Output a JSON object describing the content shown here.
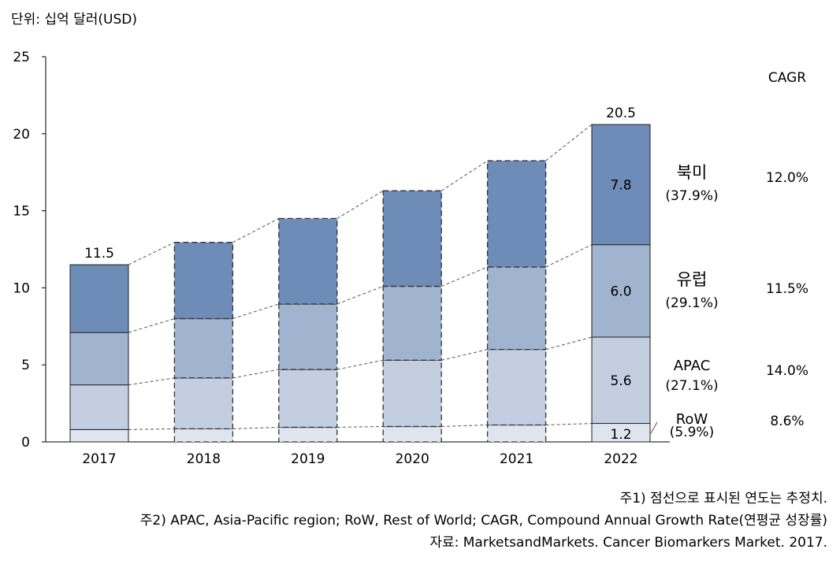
{
  "unit_label": "단위: 십억 달러(USD)",
  "chart_data": {
    "type": "bar",
    "stacked": true,
    "title": "",
    "ylabel": "단위: 십억 달러(USD)",
    "xlabel": "",
    "ylim": [
      0,
      25
    ],
    "yticks": [
      0,
      5,
      10,
      15,
      20,
      25
    ],
    "categories": [
      "2017",
      "2018",
      "2019",
      "2020",
      "2021",
      "2022"
    ],
    "estimated": [
      false,
      true,
      true,
      true,
      true,
      false
    ],
    "series": [
      {
        "name": "RoW",
        "share": "(5.9%)",
        "cagr": "8.6%",
        "color": "#dfe5ef",
        "values": [
          0.8,
          0.85,
          0.95,
          1.0,
          1.1,
          1.2
        ]
      },
      {
        "name": "APAC",
        "share": "(27.1%)",
        "cagr": "14.0%",
        "color": "#c3cfe1",
        "values": [
          2.9,
          3.3,
          3.75,
          4.3,
          4.9,
          5.6
        ]
      },
      {
        "name": "유럽",
        "share": "(29.1%)",
        "cagr": "11.5%",
        "color": "#a0b3cf",
        "values": [
          3.4,
          3.85,
          4.25,
          4.8,
          5.35,
          6.0
        ]
      },
      {
        "name": "북미",
        "share": "(37.9%)",
        "cagr": "12.0%",
        "color": "#6e8cb8",
        "values": [
          4.4,
          4.95,
          5.55,
          6.2,
          6.9,
          7.8
        ]
      }
    ],
    "totals": [
      {
        "year": "2017",
        "value": "11.5"
      },
      {
        "year": "2022",
        "value": "20.5"
      }
    ],
    "segment_labels_2022": [
      "1.2",
      "5.6",
      "6.0",
      "7.8"
    ],
    "cagr_header": "CAGR"
  },
  "notes": [
    "주1) 점선으로 표시된 연도는 추정치.",
    "주2) APAC, Asia-Pacific region; RoW, Rest of World; CAGR, Compound Annual Growth Rate(연평균 성장률)",
    "자료: MarketsandMarkets. Cancer Biomarkers Market. 2017."
  ]
}
